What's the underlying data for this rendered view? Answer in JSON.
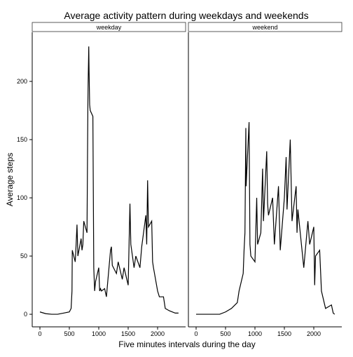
{
  "chart_data": {
    "type": "line",
    "title": "Average activity pattern during weekdays and weekends",
    "xlabel": "Five minutes intervals during the day",
    "ylabel": "Average steps",
    "color": "#000000",
    "xlim": [
      -131,
      2476
    ],
    "ylim": [
      -10.8,
      242.2
    ],
    "xticks": [
      0,
      500,
      1000,
      1500,
      2000
    ],
    "yticks": [
      0,
      50,
      100,
      150,
      200
    ],
    "panels": [
      {
        "name": "weekday",
        "x": [
          0,
          100,
          200,
          300,
          400,
          500,
          530,
          545,
          550,
          600,
          615,
          630,
          645,
          700,
          715,
          730,
          745,
          800,
          815,
          820,
          830,
          835,
          845,
          855,
          900,
          915,
          930,
          945,
          1000,
          1015,
          1030,
          1045,
          1100,
          1130,
          1200,
          1215,
          1230,
          1300,
          1330,
          1400,
          1430,
          1500,
          1530,
          1545,
          1600,
          1630,
          1700,
          1730,
          1800,
          1815,
          1830,
          1845,
          1900,
          1915,
          1930,
          2000,
          2030,
          2100,
          2130,
          2200,
          2300,
          2355
        ],
        "values": [
          2,
          0.5,
          0,
          0,
          1,
          2,
          5,
          20,
          55,
          45,
          60,
          77,
          50,
          65,
          55,
          60,
          80,
          70,
          180,
          200,
          230,
          210,
          180,
          175,
          170,
          40,
          20,
          28,
          40,
          20,
          22,
          20,
          22,
          15,
          55,
          58,
          42,
          35,
          45,
          30,
          40,
          25,
          95,
          60,
          40,
          50,
          40,
          58,
          85,
          60,
          115,
          75,
          80,
          45,
          40,
          20,
          15,
          15,
          5,
          3,
          1,
          1
        ]
      },
      {
        "name": "weekend",
        "x": [
          0,
          200,
          400,
          500,
          600,
          700,
          730,
          800,
          815,
          830,
          845,
          850,
          900,
          915,
          930,
          1000,
          1030,
          1045,
          1100,
          1130,
          1145,
          1200,
          1215,
          1230,
          1300,
          1330,
          1400,
          1430,
          1500,
          1530,
          1545,
          1600,
          1615,
          1630,
          1700,
          1715,
          1730,
          1800,
          1830,
          1900,
          1930,
          2000,
          2015,
          2030,
          2100,
          2130,
          2200,
          2300,
          2330,
          2355
        ],
        "values": [
          0,
          0,
          0,
          2,
          5,
          10,
          20,
          35,
          55,
          70,
          160,
          110,
          165,
          60,
          50,
          45,
          100,
          60,
          70,
          125,
          80,
          140,
          95,
          85,
          100,
          60,
          110,
          55,
          100,
          135,
          90,
          150,
          115,
          80,
          110,
          70,
          90,
          55,
          40,
          80,
          60,
          75,
          25,
          50,
          55,
          20,
          5,
          8,
          1,
          0
        ]
      }
    ]
  }
}
